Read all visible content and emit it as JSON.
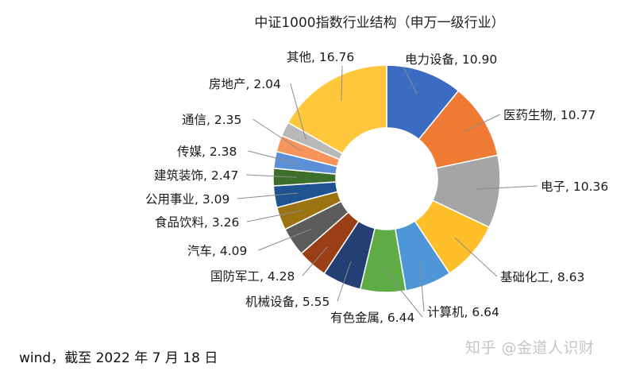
{
  "chart_data": {
    "type": "pie",
    "variant": "donut",
    "title": "中证1000指数行业结构（申万一级行业）",
    "slices": [
      {
        "label": "电力设备",
        "value": 10.9,
        "text": "10.90",
        "color": "#3b6cc2"
      },
      {
        "label": "医药生物",
        "value": 10.77,
        "text": "10.77",
        "color": "#ef7a34"
      },
      {
        "label": "电子",
        "value": 10.36,
        "text": "10.36",
        "color": "#a5a5a5"
      },
      {
        "label": "基础化工",
        "value": 8.63,
        "text": "8.63",
        "color": "#ffbf2a"
      },
      {
        "label": "计算机",
        "value": 6.64,
        "text": "6.64",
        "color": "#4f96d6"
      },
      {
        "label": "有色金属",
        "value": 6.44,
        "text": "6.44",
        "color": "#5fab46"
      },
      {
        "label": "机械设备",
        "value": 5.55,
        "text": "5.55",
        "color": "#233f73"
      },
      {
        "label": "国防军工",
        "value": 4.28,
        "text": "4.28",
        "color": "#9a3f15"
      },
      {
        "label": "汽车",
        "value": 4.09,
        "text": "4.09",
        "color": "#5c5c5c"
      },
      {
        "label": "食品饮料",
        "value": 3.26,
        "text": "3.26",
        "color": "#9b7310"
      },
      {
        "label": "公用事业",
        "value": 3.09,
        "text": "3.09",
        "color": "#1f5491"
      },
      {
        "label": "建筑装饰",
        "value": 2.47,
        "text": "2.47",
        "color": "#3e6e2b"
      },
      {
        "label": "传媒",
        "value": 2.38,
        "text": "2.38",
        "color": "#5b8fd6"
      },
      {
        "label": "通信",
        "value": 2.35,
        "text": "2.35",
        "color": "#f7945c"
      },
      {
        "label": "房地产",
        "value": 2.04,
        "text": "2.04",
        "color": "#b8b8b8"
      },
      {
        "label": "其他",
        "value": 16.76,
        "text": "16.76",
        "color": "#ffc83c"
      }
    ]
  },
  "footer": {
    "source": "wind，截至 2022 年 7 月 18 日",
    "watermark": "知乎 @金道人识财"
  }
}
